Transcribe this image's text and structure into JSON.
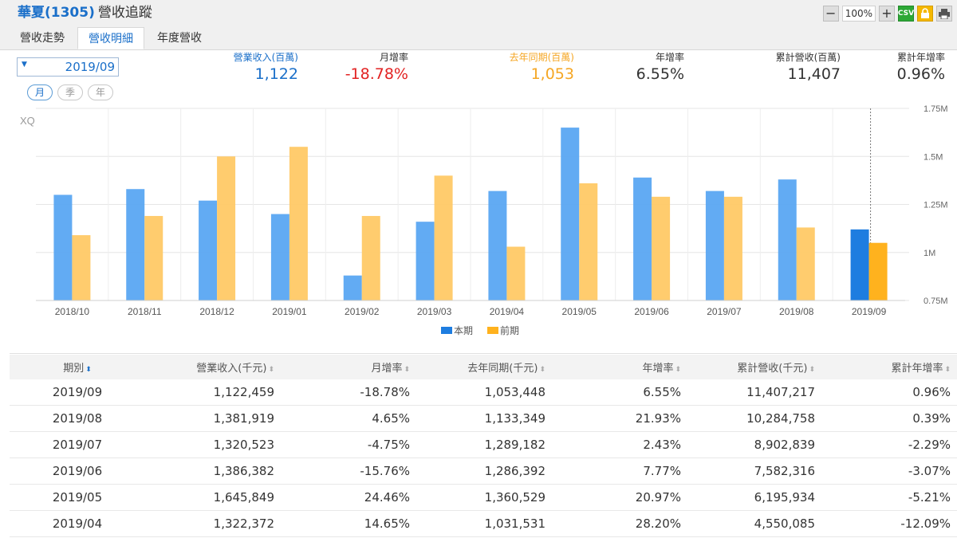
{
  "header": {
    "stock_name": "華夏(1305)",
    "subtitle": "營收追蹤",
    "zoom": "100%",
    "tools": [
      {
        "name": "zoom-out-button",
        "label": "−"
      },
      {
        "name": "zoom-in-button",
        "label": "+"
      },
      {
        "name": "csv-button",
        "label": "CSV"
      },
      {
        "name": "lock-button",
        "label": "🔒"
      },
      {
        "name": "print-button",
        "label": "🖶"
      }
    ]
  },
  "tabs": [
    {
      "label": "營收走勢",
      "active": false
    },
    {
      "label": "營收明細",
      "active": true
    },
    {
      "label": "年度營收",
      "active": false
    }
  ],
  "period_select": {
    "value": "2019/09"
  },
  "frequency": [
    {
      "label": "月",
      "active": true
    },
    {
      "label": "季",
      "active": false
    },
    {
      "label": "年",
      "active": false
    }
  ],
  "stats": [
    {
      "label": "營業收入(百萬)",
      "value": "1,122",
      "label_color": "#1a6fc9",
      "value_color": "#1a6fc9"
    },
    {
      "label": "月增率",
      "value": "-18.78%",
      "label_color": "#333333",
      "value_color": "#e22222"
    },
    {
      "label": "去年同期(百萬)",
      "value": "1,053",
      "label_color": "#f5a623",
      "value_color": "#f5a623"
    },
    {
      "label": "年增率",
      "value": "6.55%",
      "label_color": "#333333",
      "value_color": "#333333"
    },
    {
      "label": "累計營收(百萬)",
      "value": "11,407",
      "label_color": "#333333",
      "value_color": "#333333"
    },
    {
      "label": "累計年增率",
      "value": "0.96%",
      "label_color": "#333333",
      "value_color": "#333333"
    }
  ],
  "chart_data": {
    "type": "bar",
    "watermark": "XQ",
    "categories": [
      "2018/10",
      "2018/11",
      "2018/12",
      "2019/01",
      "2019/02",
      "2019/03",
      "2019/04",
      "2019/05",
      "2019/06",
      "2019/07",
      "2019/08",
      "2019/09"
    ],
    "series": [
      {
        "name": "本期",
        "color": "#5aa7f2",
        "highlight_color": "#1e7de0",
        "values": [
          1.3,
          1.33,
          1.27,
          1.2,
          0.88,
          1.16,
          1.32,
          1.65,
          1.39,
          1.32,
          1.38,
          1.12
        ]
      },
      {
        "name": "前期",
        "color": "#ffc966",
        "highlight_color": "#ffb21e",
        "values": [
          1.09,
          1.19,
          1.5,
          1.55,
          1.19,
          1.4,
          1.03,
          1.36,
          1.29,
          1.29,
          1.13,
          1.05
        ]
      }
    ],
    "yaxis": {
      "ticks": [
        "1.75M",
        "1.5M",
        "1.25M",
        "1M",
        "0.75M"
      ],
      "range": [
        0.75,
        1.75
      ],
      "unit": "M"
    },
    "grid": true,
    "legend": "bottom",
    "highlight_index": 11
  },
  "table": {
    "headers": [
      "期別",
      "營業收入(千元)",
      "月增率",
      "去年同期(千元)",
      "年增率",
      "累計營收(千元)",
      "累計年增率"
    ],
    "rows": [
      [
        "2019/09",
        "1,122,459",
        "-18.78%",
        "1,053,448",
        "6.55%",
        "11,407,217",
        "0.96%"
      ],
      [
        "2019/08",
        "1,381,919",
        "4.65%",
        "1,133,349",
        "21.93%",
        "10,284,758",
        "0.39%"
      ],
      [
        "2019/07",
        "1,320,523",
        "-4.75%",
        "1,289,182",
        "2.43%",
        "8,902,839",
        "-2.29%"
      ],
      [
        "2019/06",
        "1,386,382",
        "-15.76%",
        "1,286,392",
        "7.77%",
        "7,582,316",
        "-3.07%"
      ],
      [
        "2019/05",
        "1,645,849",
        "24.46%",
        "1,360,529",
        "20.97%",
        "6,195,934",
        "-5.21%"
      ],
      [
        "2019/04",
        "1,322,372",
        "14.65%",
        "1,031,531",
        "28.20%",
        "4,550,085",
        "-12.09%"
      ]
    ]
  }
}
